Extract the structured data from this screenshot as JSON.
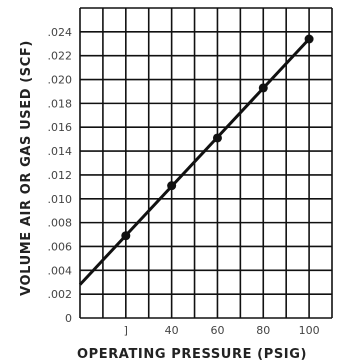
{
  "chart_data": {
    "type": "scatter",
    "xlabel": "OPERATING PRESSURE (PSIG)",
    "ylabel": "VOLUME AIR OR GAS USED (SCF)",
    "xlim": [
      0,
      110
    ],
    "ylim": [
      0,
      0.026
    ],
    "x_ticks": [
      {
        "value": 20,
        "label": "]"
      },
      {
        "value": 40,
        "label": "40"
      },
      {
        "value": 60,
        "label": "60"
      },
      {
        "value": 80,
        "label": "80"
      },
      {
        "value": 100,
        "label": "100"
      }
    ],
    "y_ticks": [
      {
        "value": 0,
        "label": "0"
      },
      {
        "value": 0.002,
        "label": ".002"
      },
      {
        "value": 0.004,
        "label": ".004"
      },
      {
        "value": 0.006,
        "label": ".006"
      },
      {
        "value": 0.008,
        "label": ".008"
      },
      {
        "value": 0.01,
        "label": ".010"
      },
      {
        "value": 0.012,
        "label": ".012"
      },
      {
        "value": 0.014,
        "label": ".014"
      },
      {
        "value": 0.016,
        "label": ".016"
      },
      {
        "value": 0.018,
        "label": ".018"
      },
      {
        "value": 0.02,
        "label": ".020"
      },
      {
        "value": 0.022,
        "label": ".022"
      },
      {
        "value": 0.024,
        "label": ".024"
      }
    ],
    "grid": true,
    "series": [
      {
        "x": [
          20,
          40,
          60,
          80,
          100
        ],
        "y": [
          0.0069,
          0.0111,
          0.0151,
          0.0193,
          0.0234
        ]
      }
    ],
    "fit_line": {
      "x": [
        0,
        100
      ],
      "y": [
        0.0028,
        0.0234
      ]
    }
  }
}
